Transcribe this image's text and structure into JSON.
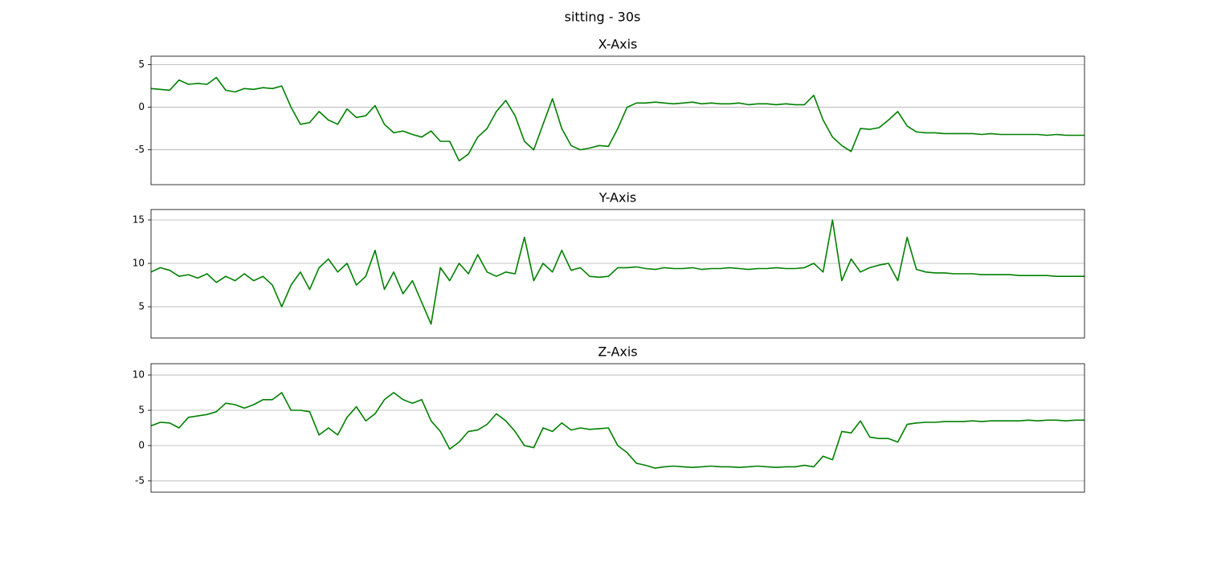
{
  "title": "sitting - 30s",
  "chart_data": [
    {
      "type": "line",
      "title": "X-Axis",
      "color": "#008000",
      "grid": true,
      "ylim": [
        -9.1,
        6.0
      ],
      "yticks": [
        -5,
        0,
        5
      ],
      "values": [
        2.2,
        2.1,
        2.0,
        3.2,
        2.7,
        2.8,
        2.7,
        3.5,
        2.0,
        1.8,
        2.2,
        2.1,
        2.3,
        2.2,
        2.5,
        0.0,
        -2.0,
        -1.8,
        -0.5,
        -1.5,
        -2.0,
        -0.2,
        -1.2,
        -1.0,
        0.2,
        -2.0,
        -3.0,
        -2.8,
        -3.2,
        -3.5,
        -2.8,
        -4.0,
        -4.0,
        -6.3,
        -5.5,
        -3.5,
        -2.5,
        -0.5,
        0.8,
        -1.0,
        -4.0,
        -5.0,
        -2.0,
        1.0,
        -2.5,
        -4.5,
        -5.0,
        -4.8,
        -4.5,
        -4.6,
        -2.5,
        0.0,
        0.5,
        0.5,
        0.6,
        0.5,
        0.4,
        0.5,
        0.6,
        0.4,
        0.5,
        0.4,
        0.4,
        0.5,
        0.3,
        0.4,
        0.4,
        0.3,
        0.4,
        0.3,
        0.3,
        1.4,
        -1.5,
        -3.5,
        -4.5,
        -5.2,
        -2.5,
        -2.6,
        -2.4,
        -1.5,
        -0.5,
        -2.2,
        -2.9,
        -3.0,
        -3.0,
        -3.1,
        -3.1,
        -3.1,
        -3.1,
        -3.2,
        -3.1,
        -3.2,
        -3.2,
        -3.2,
        -3.2,
        -3.2,
        -3.3,
        -3.2,
        -3.3,
        -3.3,
        -3.3
      ]
    },
    {
      "type": "line",
      "title": "Y-Axis",
      "color": "#008000",
      "grid": true,
      "ylim": [
        1.4,
        16.2
      ],
      "yticks": [
        5,
        10,
        15
      ],
      "values": [
        9.0,
        9.5,
        9.2,
        8.5,
        8.7,
        8.3,
        8.8,
        7.8,
        8.5,
        8.0,
        8.8,
        8.0,
        8.5,
        7.5,
        5.0,
        7.5,
        9.0,
        7.0,
        9.5,
        10.5,
        9.0,
        10.0,
        7.5,
        8.5,
        11.5,
        7.0,
        9.0,
        6.5,
        8.0,
        5.5,
        3.0,
        9.5,
        8.0,
        10.0,
        8.8,
        11.0,
        9.0,
        8.5,
        9.0,
        8.8,
        13.0,
        8.0,
        10.0,
        9.0,
        11.5,
        9.2,
        9.5,
        8.5,
        8.4,
        8.5,
        9.5,
        9.5,
        9.6,
        9.4,
        9.3,
        9.5,
        9.4,
        9.4,
        9.5,
        9.3,
        9.4,
        9.4,
        9.5,
        9.4,
        9.3,
        9.4,
        9.4,
        9.5,
        9.4,
        9.4,
        9.5,
        10.0,
        9.0,
        15.0,
        8.0,
        10.5,
        9.0,
        9.5,
        9.8,
        10.0,
        8.0,
        13.0,
        9.3,
        9.0,
        8.9,
        8.9,
        8.8,
        8.8,
        8.8,
        8.7,
        8.7,
        8.7,
        8.7,
        8.6,
        8.6,
        8.6,
        8.6,
        8.5,
        8.5,
        8.5,
        8.5
      ]
    },
    {
      "type": "line",
      "title": "Z-Axis",
      "color": "#008000",
      "grid": true,
      "ylim": [
        -6.6,
        11.6
      ],
      "yticks": [
        -5,
        0,
        5,
        10
      ],
      "values": [
        2.8,
        3.3,
        3.2,
        2.5,
        4.0,
        4.2,
        4.4,
        4.8,
        6.0,
        5.8,
        5.3,
        5.8,
        6.5,
        6.5,
        7.5,
        5.0,
        5.0,
        4.8,
        1.5,
        2.5,
        1.5,
        4.0,
        5.5,
        3.5,
        4.5,
        6.5,
        7.5,
        6.5,
        6.0,
        6.5,
        3.5,
        2.0,
        -0.5,
        0.5,
        2.0,
        2.2,
        3.0,
        4.5,
        3.5,
        2.0,
        0.0,
        -0.3,
        2.5,
        2.0,
        3.2,
        2.2,
        2.5,
        2.3,
        2.4,
        2.5,
        0.0,
        -1.0,
        -2.5,
        -2.8,
        -3.2,
        -3.0,
        -2.9,
        -3.0,
        -3.1,
        -3.0,
        -2.9,
        -3.0,
        -3.0,
        -3.1,
        -3.0,
        -2.9,
        -3.0,
        -3.1,
        -3.0,
        -3.0,
        -2.8,
        -3.0,
        -1.5,
        -2.0,
        2.0,
        1.8,
        3.5,
        1.2,
        1.0,
        1.0,
        0.5,
        3.0,
        3.2,
        3.3,
        3.3,
        3.4,
        3.4,
        3.4,
        3.5,
        3.4,
        3.5,
        3.5,
        3.5,
        3.5,
        3.6,
        3.5,
        3.6,
        3.6,
        3.5,
        3.6,
        3.6
      ]
    }
  ]
}
